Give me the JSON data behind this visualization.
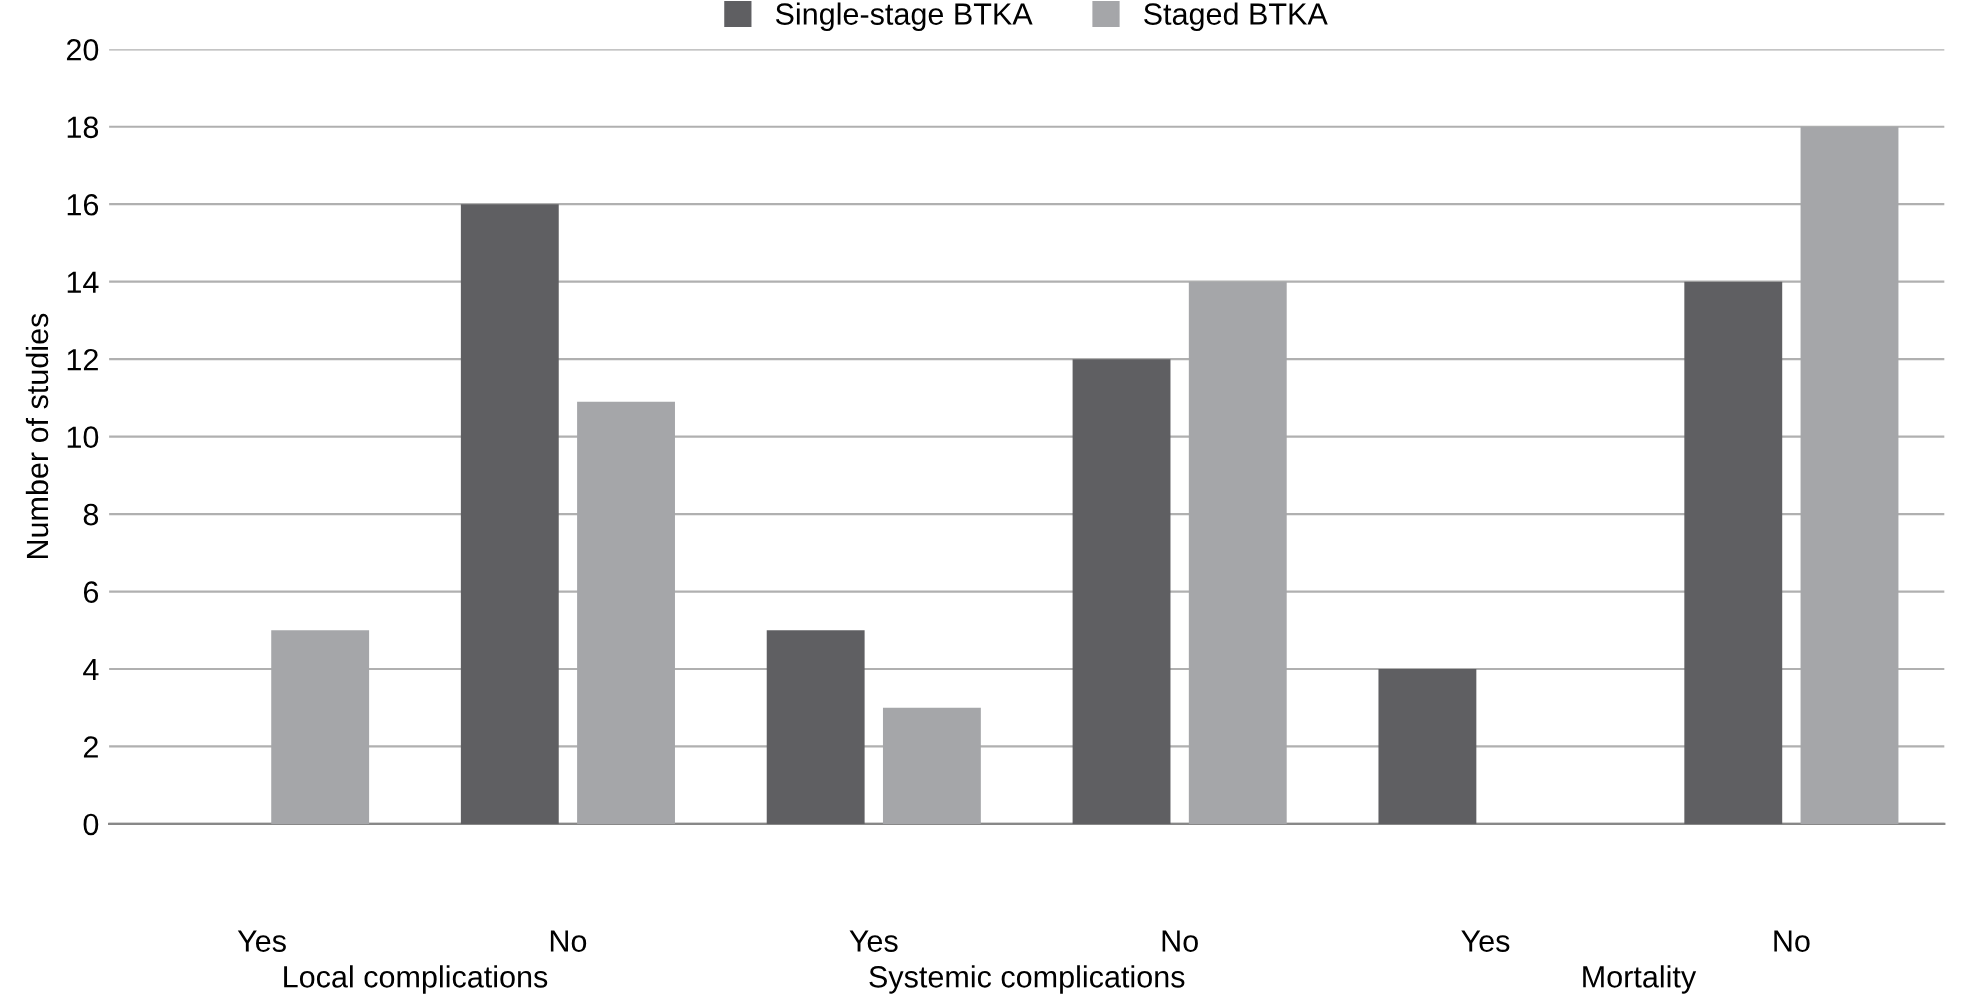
{
  "chart_data": {
    "type": "bar",
    "ylabel": "Number of studies",
    "categories": [
      "Yes",
      "No",
      "Yes",
      "No",
      "Yes",
      "No"
    ],
    "series": [
      {
        "name": "Single-stage BTKA",
        "color": "#5f5f62",
        "values": [
          0,
          16,
          5,
          12,
          4,
          14
        ]
      },
      {
        "name": "Staged BTKA",
        "color": "#a5a6a9",
        "values": [
          5,
          10.9,
          3,
          14,
          0,
          18
        ]
      }
    ],
    "annotations": [
      "Local complications",
      "Systemic complications",
      "Mortality"
    ],
    "ylim": [
      0,
      20
    ],
    "yticks": [
      0,
      2,
      4,
      6,
      8,
      10,
      12,
      14,
      16,
      18,
      20
    ],
    "grid": "y",
    "legend": "top"
  }
}
